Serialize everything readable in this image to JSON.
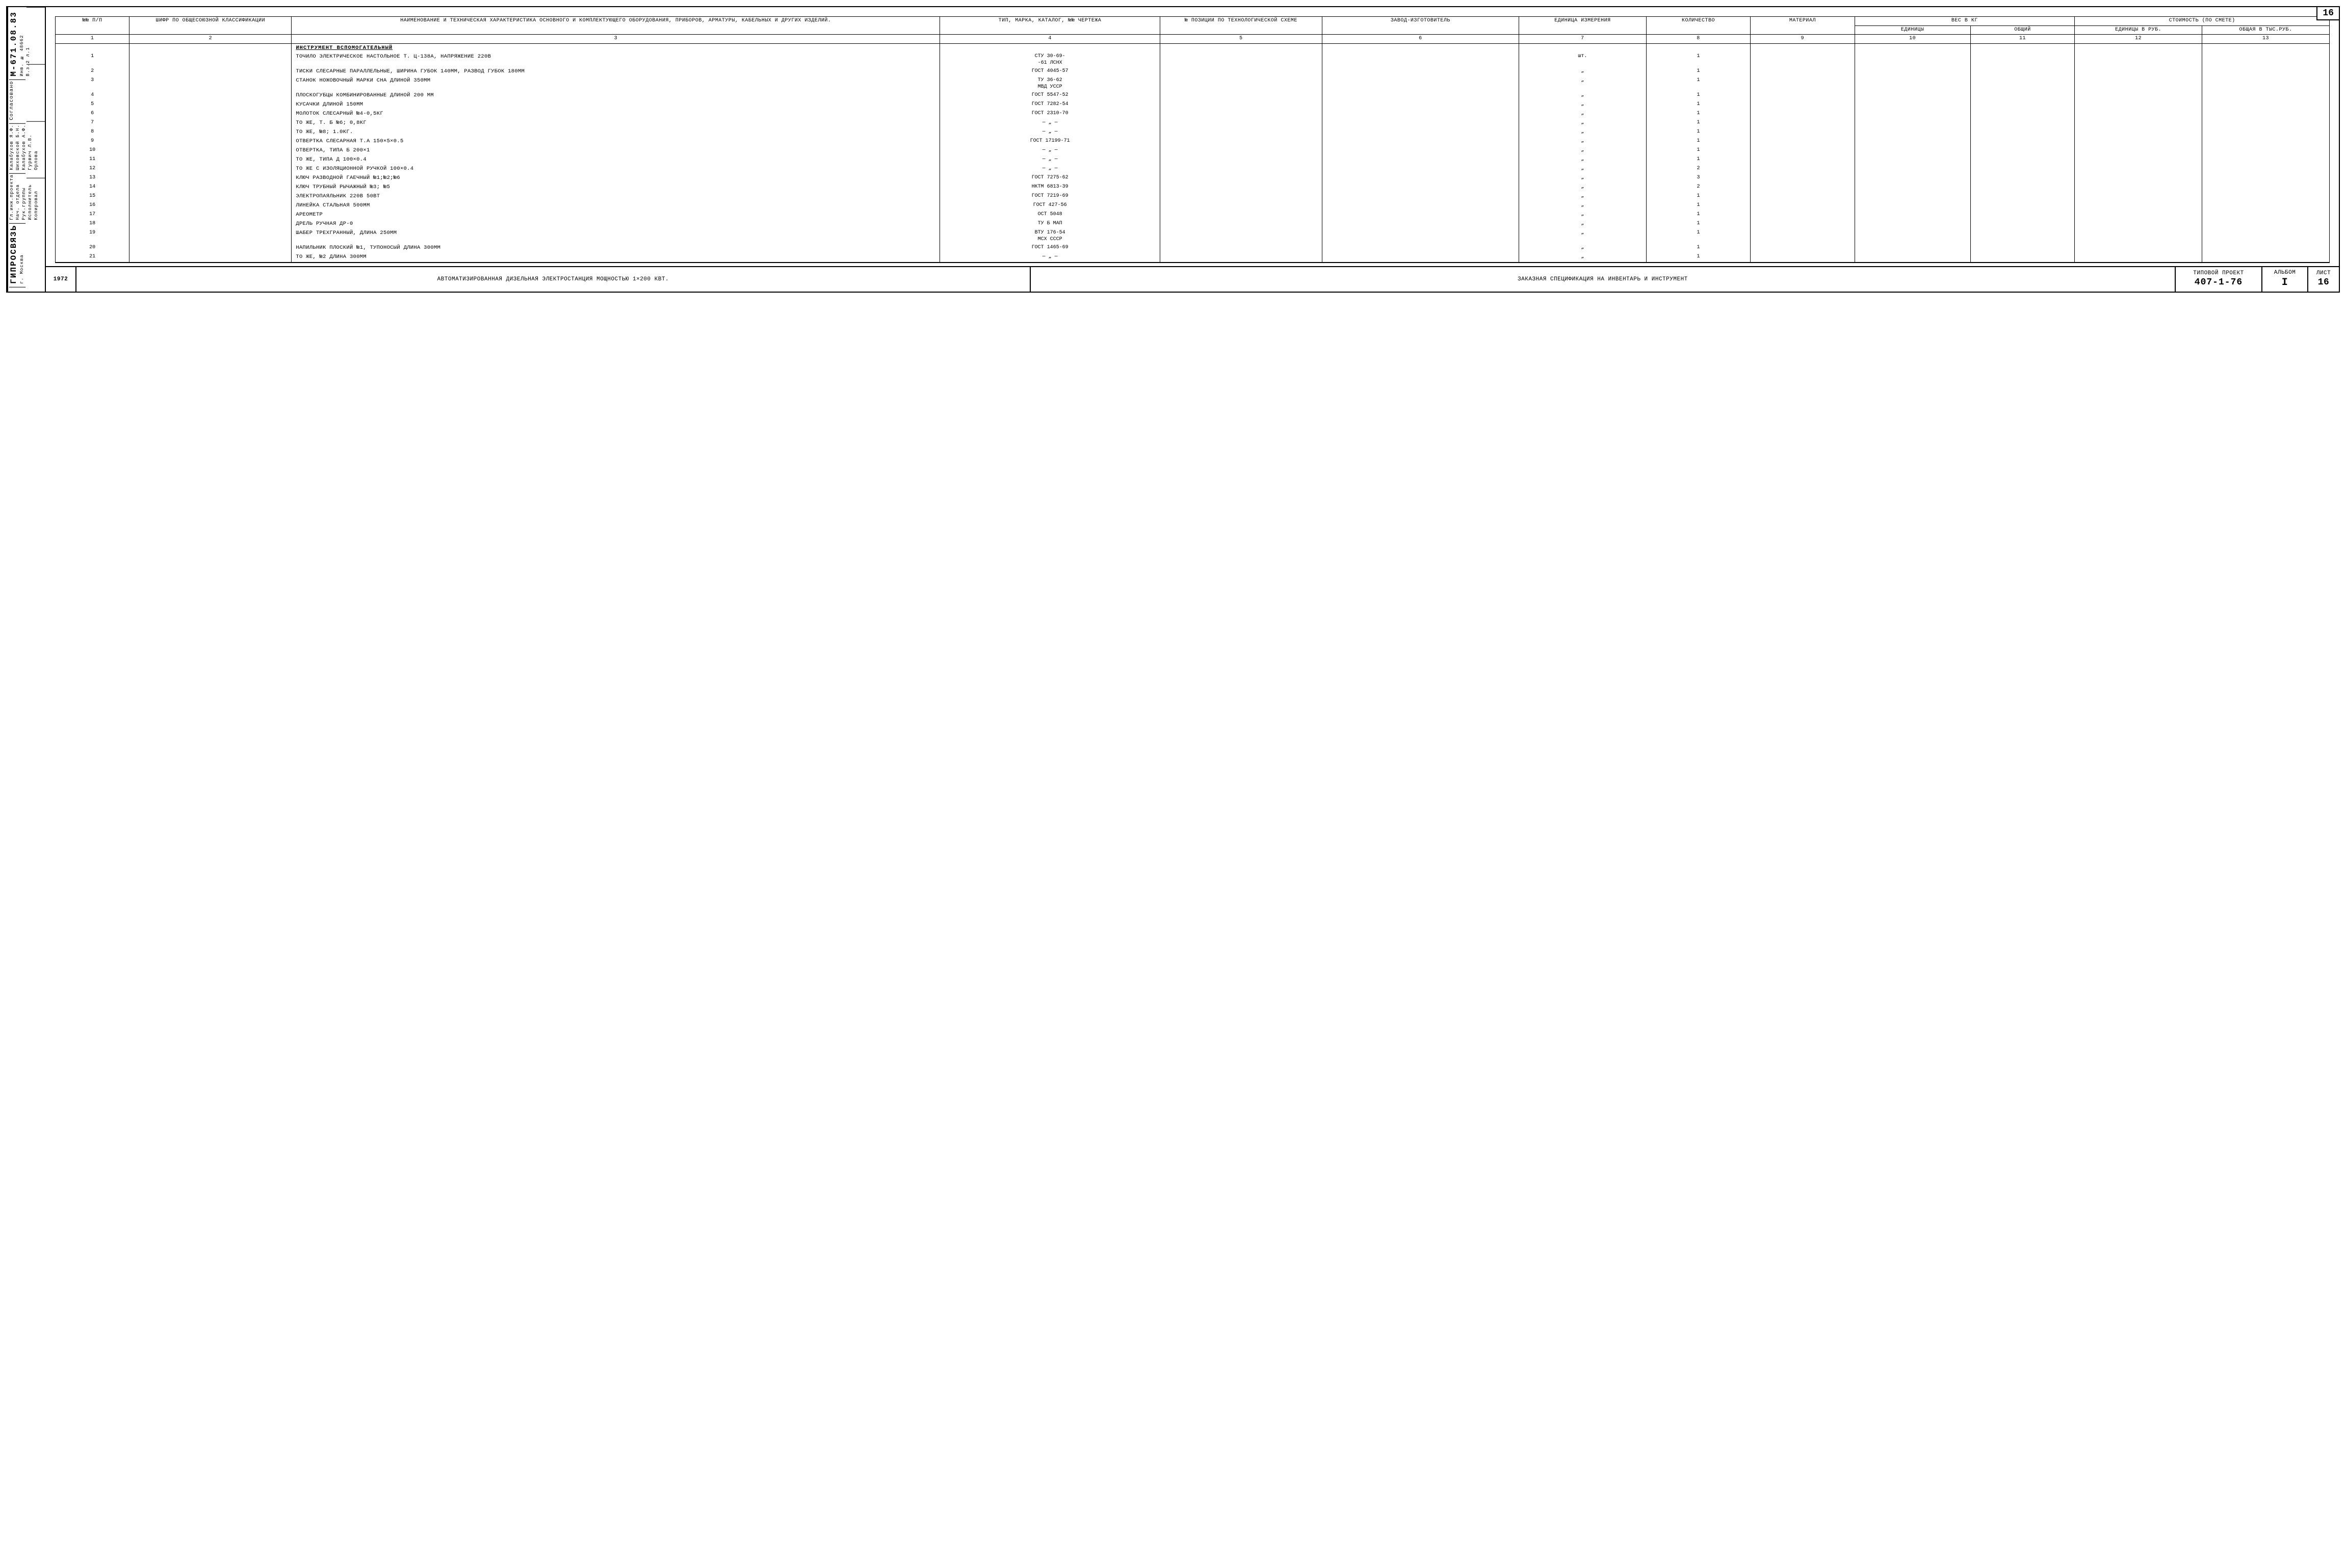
{
  "page_number_top": "16",
  "left_spine": {
    "org": "ГИПРОСВЯЗЬ",
    "city": "г. Москва",
    "roles": [
      "Гл.инж.проекта",
      "Нач. отдела",
      "Рук.группы",
      "Исполнитель",
      "Копировал"
    ],
    "names": [
      "Калабухов Я.Ф.",
      "Шиховской Б.Н.",
      "Калабухов А.Ф.",
      "Гурвич Л.В.",
      "Орлова"
    ],
    "approved": "Согласовано",
    "code": "М-671.08.83",
    "inv": "Инв. № 48662",
    "vz": "В.з.2   л.1"
  },
  "header": {
    "cols": [
      "№№ п/п",
      "Шифр по общесоюз­ной класси­фикации",
      "Наименование и техническая характе­ристика основного и комплектующе­го оборудования, приборов, арматуры, кабельных и других изделий.",
      "Тип, марка, каталог, №№ чертежа",
      "№ позиции по техно­логической схеме",
      "Завод-­изготовитель",
      "Единица измере­ния",
      "Коли­чество",
      "Мате­риал",
      "Вес в кг",
      "Стоимость (по смете)"
    ],
    "sub_weight": [
      "Единицы",
      "Общий"
    ],
    "sub_cost": [
      "Единицы в руб.",
      "Общая в тыс.руб."
    ],
    "nums": [
      "1",
      "2",
      "3",
      "4",
      "5",
      "6",
      "7",
      "8",
      "9",
      "10",
      "11",
      "12",
      "13"
    ]
  },
  "section_title": "Инструмент вспомогательный",
  "rows": [
    {
      "n": "1",
      "name": "Точило электрическое настольное т. Ц-138А, напряжение 220В",
      "type": "СТУ 30-69-\n-61 ЛСНХ",
      "unit": "шт.",
      "qty": "1"
    },
    {
      "n": "2",
      "name": "Тиски слесарные параллельные, ширина губок 140мм, развод губок 180мм",
      "type": "ГОСТ 4045-57",
      "unit": "„",
      "qty": "1"
    },
    {
      "n": "3",
      "name": "Станок ножовочный марки СНА длиной 350мм",
      "type": "ТУ 36-62\nМВД УССР",
      "unit": "„",
      "qty": "1"
    },
    {
      "n": "4",
      "name": "Плоскогубцы комбинированные длиной 200 мм",
      "type": "ГОСТ 5547-52",
      "unit": "„",
      "qty": "1"
    },
    {
      "n": "5",
      "name": "Кусачки длиной 150мм",
      "type": "ГОСТ 7282-54",
      "unit": "„",
      "qty": "1"
    },
    {
      "n": "6",
      "name": "Молоток слесарный №4-0,5кг",
      "type": "ГОСТ 2310-70",
      "unit": "„",
      "qty": "1"
    },
    {
      "n": "7",
      "name": "То же,  т. Б №6; 0,8кг",
      "type": "— „ —",
      "unit": "„",
      "qty": "1"
    },
    {
      "n": "8",
      "name": "То же,  №8;  1.0кг.",
      "type": "— „ —",
      "unit": "„",
      "qty": "1"
    },
    {
      "n": "9",
      "name": "Отвертка слесарная т.А 150×5×0.5",
      "type": "ГОСТ 17199-71",
      "unit": "„",
      "qty": "1"
    },
    {
      "n": "10",
      "name": "Отвертка, типа Б  200×1",
      "type": "— „ —",
      "unit": "„",
      "qty": "1"
    },
    {
      "n": "11",
      "name": "То же, типа Д  100×0.4",
      "type": "— „ —",
      "unit": "„",
      "qty": "1"
    },
    {
      "n": "12",
      "name": "То же с изоляционной ручкой  100×0.4",
      "type": "— „ —",
      "unit": "„",
      "qty": "2"
    },
    {
      "n": "13",
      "name": "Ключ разводной гаечный №1;№2;№6",
      "type": "ГОСТ 7275-62",
      "unit": "„",
      "qty": "3"
    },
    {
      "n": "14",
      "name": "Ключ трубный рычажный №3; №5",
      "type": "НКТМ 6813-39",
      "unit": "„",
      "qty": "2"
    },
    {
      "n": "15",
      "name": "Электропаяльник  220В  50Вт",
      "type": "ГОСТ 7219-69",
      "unit": "„",
      "qty": "1"
    },
    {
      "n": "16",
      "name": "Линейка стальная  500мм",
      "type": "ГОСТ 427-56",
      "unit": "„",
      "qty": "1"
    },
    {
      "n": "17",
      "name": "Ареометр",
      "type": "ОСТ 5048",
      "unit": "„",
      "qty": "1"
    },
    {
      "n": "18",
      "name": "Дрель ручная ДР-0",
      "type": "ТУ Б МАП",
      "unit": "„",
      "qty": "1"
    },
    {
      "n": "19",
      "name": "Шабер трехгранный, длина 250мм",
      "type": "ВТУ 176-54\nМСХ СССР",
      "unit": "„",
      "qty": "1"
    },
    {
      "n": "20",
      "name": "Напильник плоский №1, тупоносый длина 300мм",
      "type": "ГОСТ 1465-69",
      "unit": "„",
      "qty": "1"
    },
    {
      "n": "21",
      "name": "То же, №2 длина 300мм",
      "type": "— „ —",
      "unit": "„",
      "qty": "1"
    }
  ],
  "title_block": {
    "year": "1972",
    "left": "Автоматизированная дизельная электростанция мощностью 1×200 кВт.",
    "center": "Заказная спецификация на инвентарь и инструмент",
    "proj_lbl": "Типовой проект",
    "proj_num": "407-1-76",
    "album_lbl": "Альбом",
    "album_num": "I",
    "sheet_lbl": "Лист",
    "sheet_num": "16"
  }
}
